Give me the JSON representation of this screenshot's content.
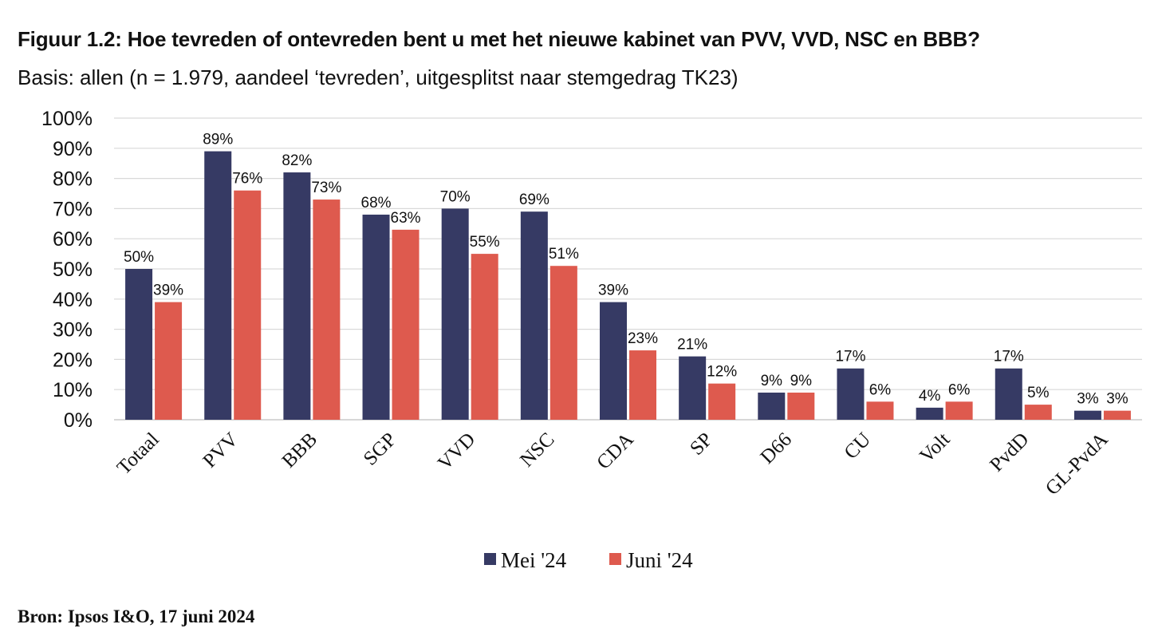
{
  "title": "Figuur 1.2: Hoe tevreden of ontevreden bent u met het nieuwe kabinet van PVV, VVD, NSC en BBB?",
  "subtitle": "Basis: allen (n = 1.979, aandeel ‘tevreden’, uitgesplitst naar stemgedrag TK23)",
  "source": "Bron: Ipsos I&O, 17 juni 2024",
  "chart_data": {
    "type": "bar",
    "categories": [
      "Totaal",
      "PVV",
      "BBB",
      "SGP",
      "VVD",
      "NSC",
      "CDA",
      "SP",
      "D66",
      "CU",
      "Volt",
      "PvdD",
      "GL-PvdA"
    ],
    "series": [
      {
        "name": "Mei '24",
        "color": "#363a64",
        "values": [
          50,
          89,
          82,
          68,
          70,
          69,
          39,
          21,
          9,
          17,
          4,
          17,
          3
        ]
      },
      {
        "name": "Juni '24",
        "color": "#de5a4e",
        "values": [
          39,
          76,
          73,
          63,
          55,
          51,
          23,
          12,
          9,
          6,
          6,
          5,
          3
        ]
      }
    ],
    "ylim": [
      0,
      100
    ],
    "yticks": [
      "0%",
      "10%",
      "20%",
      "30%",
      "40%",
      "50%",
      "60%",
      "70%",
      "80%",
      "90%",
      "100%"
    ],
    "value_suffix": "%",
    "grid": true,
    "legend": "bottom"
  }
}
